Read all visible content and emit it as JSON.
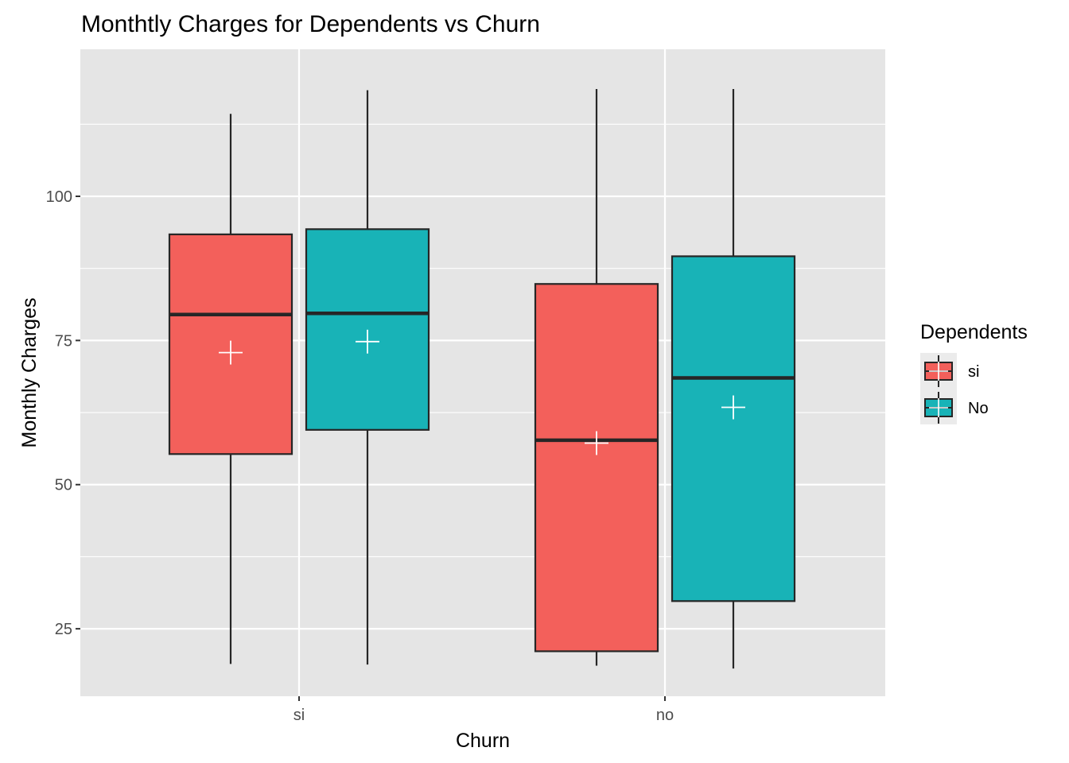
{
  "chart_data": {
    "type": "boxplot",
    "title": "Monthtly Charges for Dependents vs Churn",
    "xlabel": "Churn",
    "ylabel": "Monthly Charges",
    "categories": [
      "si",
      "no"
    ],
    "ylim": [
      13.3,
      125.5
    ],
    "y_ticks": [
      25,
      50,
      75,
      100
    ],
    "grid": true,
    "legend": {
      "title": "Dependents",
      "position": "right"
    },
    "colors": {
      "panel_background": "#e5e5e5",
      "grid": "#ffffff",
      "box_outline": "#262626",
      "mean_marker": "#ffffff"
    },
    "series": [
      {
        "name": "si",
        "color": "#f3605b",
        "boxes": [
          {
            "category": "si",
            "whisker_low": 18.9,
            "q1": 55.3,
            "median": 79.5,
            "q3": 93.4,
            "whisker_high": 114.3,
            "mean": 72.9
          },
          {
            "category": "no",
            "whisker_low": 18.6,
            "q1": 21.1,
            "median": 57.7,
            "q3": 84.8,
            "whisker_high": 118.6,
            "mean": 57.2
          }
        ]
      },
      {
        "name": "No",
        "color": "#18b3b7",
        "boxes": [
          {
            "category": "si",
            "whisker_low": 18.8,
            "q1": 59.5,
            "median": 79.7,
            "q3": 94.3,
            "whisker_high": 118.4,
            "mean": 74.8
          },
          {
            "category": "no",
            "whisker_low": 18.1,
            "q1": 29.8,
            "median": 68.5,
            "q3": 89.6,
            "whisker_high": 118.6,
            "mean": 63.4
          }
        ]
      }
    ]
  }
}
